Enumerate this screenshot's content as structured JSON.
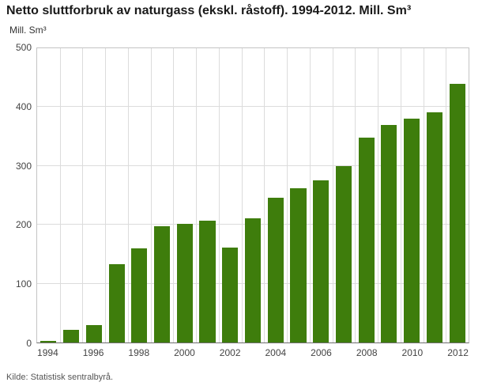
{
  "source": "Kilde: Statistisk sentralbyrå.",
  "chart_data": {
    "type": "bar",
    "title": "Netto sluttforbruk av naturgass (ekskl. råstoff). 1994-2012. Mill. Sm³",
    "ylabel": "Mill. Sm³",
    "xlabel": "",
    "categories": [
      1994,
      1995,
      1996,
      1997,
      1998,
      1999,
      2000,
      2001,
      2002,
      2003,
      2004,
      2005,
      2006,
      2007,
      2008,
      2009,
      2010,
      2011,
      2012
    ],
    "values": [
      3,
      22,
      29,
      133,
      160,
      197,
      202,
      207,
      161,
      211,
      246,
      262,
      276,
      300,
      348,
      369,
      381,
      391,
      440
    ],
    "ylim": [
      0,
      500
    ],
    "ytick_interval": 100,
    "xtick_every": 2,
    "grid": true,
    "legend": "none",
    "bar_color": "#3e7d0c",
    "gridline_color": "#dcdcdc"
  }
}
